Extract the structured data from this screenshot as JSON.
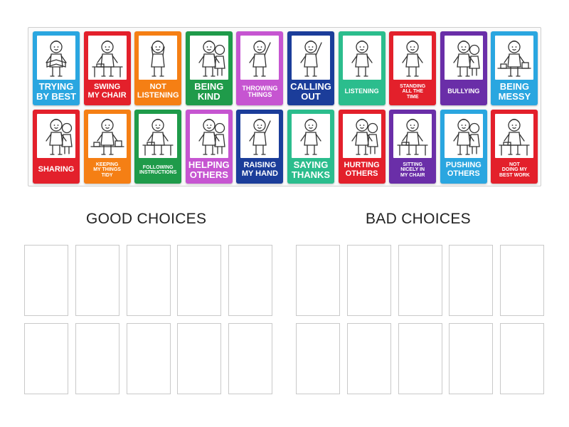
{
  "colors": {
    "blue": "#2aa6e0",
    "red": "#e3202b",
    "orange": "#f57f14",
    "green": "#1f9b4a",
    "purple": "#c655d1",
    "navy": "#1b3d9a",
    "teal": "#2bbd8d",
    "violet": "#6a2ea8"
  },
  "cards": [
    {
      "label": "TRYING\nBY BEST",
      "color": "blue",
      "size": "s-big",
      "icon": "child-reading-icon"
    },
    {
      "label": "SWING\nMY CHAIR",
      "color": "red",
      "size": "s-mid",
      "icon": "child-chair-icon"
    },
    {
      "label": "NOT\nLISTENING",
      "color": "orange",
      "size": "s-mid",
      "icon": "child-covering-ears-icon"
    },
    {
      "label": "BEING\nKIND",
      "color": "green",
      "size": "s-big",
      "icon": "children-hugging-icon"
    },
    {
      "label": "THROWING\nTHINGS",
      "color": "purple",
      "size": "s-sm",
      "icon": "child-throwing-icon"
    },
    {
      "label": "CALLING\nOUT",
      "color": "navy",
      "size": "s-big",
      "icon": "child-shouting-icon"
    },
    {
      "label": "LISTENING",
      "color": "teal",
      "size": "s-sm",
      "icon": "child-listening-icon"
    },
    {
      "label": "STANDING\nALL THE\nTIME",
      "color": "red",
      "size": "s-xs",
      "icon": "child-standing-icon"
    },
    {
      "label": "BULLYING",
      "color": "violet",
      "size": "s-sm",
      "icon": "children-bullying-icon"
    },
    {
      "label": "BEING\nMESSY",
      "color": "blue",
      "size": "s-big",
      "icon": "messy-desk-icon"
    },
    {
      "label": "SHARING",
      "color": "red",
      "size": "s-mid",
      "icon": "children-sharing-icon"
    },
    {
      "label": "KEEPING\nMY THINGS\nTIDY",
      "color": "orange",
      "size": "s-xs",
      "icon": "tidy-desk-icon"
    },
    {
      "label": "FOLLOWING\nINSTRUCTIONS",
      "color": "green",
      "size": "s-xs",
      "icon": "child-at-desk-icon"
    },
    {
      "label": "HELPING\nOTHERS",
      "color": "purple",
      "size": "s-big",
      "icon": "children-helping-icon"
    },
    {
      "label": "RAISING\nMY HAND",
      "color": "navy",
      "size": "s-mid",
      "icon": "child-raising-hand-icon"
    },
    {
      "label": "SAYING\nTHANKS",
      "color": "teal",
      "size": "s-big",
      "icon": "child-thanking-icon"
    },
    {
      "label": "HURTING\nOTHERS",
      "color": "red",
      "size": "s-mid",
      "icon": "children-hurting-icon"
    },
    {
      "label": "SITTING\nNICELY IN\nMY CHAIR",
      "color": "violet",
      "size": "s-xs",
      "icon": "child-sitting-icon"
    },
    {
      "label": "PUSHING\nOTHERS",
      "color": "blue",
      "size": "s-mid",
      "icon": "children-pushing-icon"
    },
    {
      "label": "NOT\nDOING MY\nBEST WORK",
      "color": "red",
      "size": "s-xs",
      "icon": "child-not-working-icon"
    }
  ],
  "groups": [
    {
      "title": "GOOD CHOICES"
    },
    {
      "title": "BAD CHOICES"
    }
  ]
}
